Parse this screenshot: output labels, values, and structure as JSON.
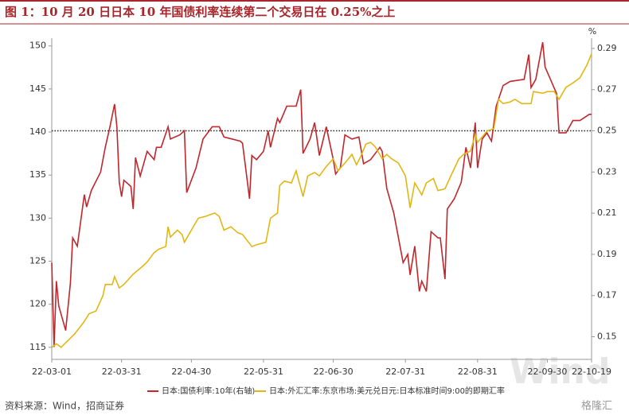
{
  "chart_data": {
    "type": "line",
    "title": "图 1：10 月 20 日日本 10 年国债利率连续第二个交易日在 0.25%之上",
    "y2_unit": "%",
    "source": "资料来源：Wind，招商证券",
    "watermark": "Wind",
    "logo": "格隆汇",
    "xlim": [
      "22-03-01",
      "22-10-19"
    ],
    "xticks": [
      "22-03-01",
      "22-03-31",
      "22-04-30",
      "22-05-31",
      "22-06-30",
      "22-07-31",
      "22-08-31",
      "22-09-30",
      "22-10-19"
    ],
    "ylim": [
      113.6,
      150.9
    ],
    "yticks": [
      115,
      120,
      125,
      130,
      135,
      140,
      145,
      150
    ],
    "y2lim": [
      0.139,
      0.295
    ],
    "y2ticks": [
      0.15,
      0.17,
      0.19,
      0.21,
      0.23,
      0.25,
      0.27,
      0.29
    ],
    "reference_line": {
      "value": 0.25,
      "axis": "y2"
    },
    "series": [
      {
        "name": "日本:国债利率:10年(右轴)",
        "color": "#c0272d",
        "axis": "y2",
        "x": [
          "22-03-01",
          "22-03-02",
          "22-03-03",
          "22-03-04",
          "22-03-07",
          "22-03-09",
          "22-03-10",
          "22-03-12",
          "22-03-15",
          "22-03-16",
          "22-03-18",
          "22-03-22",
          "22-03-24",
          "22-03-26",
          "22-03-28",
          "22-03-29",
          "22-03-30",
          "22-03-31",
          "22-04-01",
          "22-04-04",
          "22-04-05",
          "22-04-06",
          "22-04-08",
          "22-04-11",
          "22-04-14",
          "22-04-15",
          "22-04-17",
          "22-04-20",
          "22-04-21",
          "22-04-25",
          "22-04-27",
          "22-04-28",
          "22-05-02",
          "22-05-05",
          "22-05-09",
          "22-05-12",
          "22-05-14",
          "22-05-21",
          "22-05-22",
          "22-05-25",
          "22-05-26",
          "22-05-28",
          "22-05-31",
          "22-06-02",
          "22-06-03",
          "22-06-06",
          "22-06-07",
          "22-06-10",
          "22-06-14",
          "22-06-16",
          "22-06-17",
          "22-06-20",
          "22-06-22",
          "22-06-24",
          "22-06-27",
          "22-06-30",
          "22-07-01",
          "22-07-03",
          "22-07-05",
          "22-07-08",
          "22-07-11",
          "22-07-13",
          "22-07-16",
          "22-07-20",
          "22-07-21",
          "22-07-23",
          "22-07-26",
          "22-07-30",
          "22-08-01",
          "22-08-02",
          "22-08-04",
          "22-08-06",
          "22-08-07",
          "22-08-09",
          "22-08-11",
          "22-08-14",
          "22-08-15",
          "22-08-17",
          "22-08-18",
          "22-08-21",
          "22-08-24",
          "22-08-26",
          "22-08-28",
          "22-08-30",
          "22-08-31",
          "22-09-02",
          "22-09-04",
          "22-09-06",
          "22-09-08",
          "22-09-11",
          "22-09-14",
          "22-09-20",
          "22-09-22",
          "22-09-23",
          "22-09-25",
          "22-09-28",
          "22-09-29",
          "22-10-04",
          "22-10-05",
          "22-10-08",
          "22-10-11",
          "22-10-14",
          "22-10-18",
          "22-10-19"
        ],
        "values": [
          0.186,
          0.145,
          0.177,
          0.165,
          0.153,
          0.176,
          0.198,
          0.194,
          0.219,
          0.213,
          0.221,
          0.23,
          0.242,
          0.252,
          0.263,
          0.252,
          0.225,
          0.218,
          0.226,
          0.223,
          0.212,
          0.237,
          0.228,
          0.24,
          0.236,
          0.242,
          0.242,
          0.252,
          0.246,
          0.248,
          0.25,
          0.22,
          0.232,
          0.246,
          0.252,
          0.252,
          0.247,
          0.245,
          0.244,
          0.217,
          0.238,
          0.236,
          0.24,
          0.25,
          0.242,
          0.256,
          0.254,
          0.262,
          0.262,
          0.27,
          0.239,
          0.246,
          0.254,
          0.238,
          0.252,
          0.236,
          0.229,
          0.232,
          0.248,
          0.246,
          0.247,
          0.234,
          0.236,
          0.242,
          0.24,
          0.222,
          0.21,
          0.186,
          0.19,
          0.18,
          0.194,
          0.172,
          0.177,
          0.172,
          0.201,
          0.198,
          0.198,
          0.178,
          0.212,
          0.217,
          0.225,
          0.242,
          0.232,
          0.254,
          0.232,
          0.246,
          0.249,
          0.245,
          0.262,
          0.272,
          0.274,
          0.275,
          0.287,
          0.271,
          0.275,
          0.293,
          0.281,
          0.268,
          0.249,
          0.249,
          0.255,
          0.255,
          0.258,
          0.258
        ]
      },
      {
        "name": "日本:外汇汇率:东京市场:美元兑日元:日本标准时间9:00的即期汇率",
        "color": "#e2b714",
        "x": [
          "22-03-01",
          "22-03-03",
          "22-03-05",
          "22-03-08",
          "22-03-11",
          "22-03-15",
          "22-03-17",
          "22-03-20",
          "22-03-23",
          "22-03-24",
          "22-03-27",
          "22-03-28",
          "22-03-30",
          "22-04-01",
          "22-04-05",
          "22-04-09",
          "22-04-11",
          "22-04-14",
          "22-04-16",
          "22-04-19",
          "22-04-20",
          "22-04-21",
          "22-04-24",
          "22-04-26",
          "22-04-27",
          "22-04-30",
          "22-05-03",
          "22-05-06",
          "22-05-10",
          "22-05-12",
          "22-05-14",
          "22-05-17",
          "22-05-20",
          "22-05-22",
          "22-05-26",
          "22-05-28",
          "22-06-01",
          "22-06-03",
          "22-06-06",
          "22-06-07",
          "22-06-09",
          "22-06-12",
          "22-06-14",
          "22-06-17",
          "22-06-19",
          "22-06-22",
          "22-06-24",
          "22-06-27",
          "22-06-30",
          "22-07-02",
          "22-07-05",
          "22-07-08",
          "22-07-10",
          "22-07-12",
          "22-07-14",
          "22-07-16",
          "22-07-18",
          "22-07-21",
          "22-07-23",
          "22-07-25",
          "22-07-28",
          "22-07-31",
          "22-08-02",
          "22-08-04",
          "22-08-07",
          "22-08-09",
          "22-08-12",
          "22-08-14",
          "22-08-17",
          "22-08-19",
          "22-08-23",
          "22-08-25",
          "22-08-28",
          "22-08-30",
          "22-08-31",
          "22-09-04",
          "22-09-07",
          "22-09-09",
          "22-09-11",
          "22-09-14",
          "22-09-16",
          "22-09-19",
          "22-09-23",
          "22-09-24",
          "22-09-28",
          "22-09-30",
          "22-10-03",
          "22-10-05",
          "22-10-08",
          "22-10-11",
          "22-10-14",
          "22-10-17",
          "22-10-19"
        ],
        "values": [
          115.0,
          115.4,
          115.0,
          115.8,
          116.6,
          118.0,
          118.9,
          119.2,
          121.0,
          122.3,
          122.3,
          123.2,
          121.9,
          122.3,
          123.5,
          124.4,
          124.9,
          126.0,
          126.4,
          126.7,
          129.0,
          127.8,
          128.6,
          128.1,
          127.2,
          128.6,
          130.0,
          130.2,
          130.6,
          130.2,
          128.6,
          129.0,
          128.3,
          128.1,
          126.7,
          126.9,
          127.2,
          130.0,
          130.6,
          133.8,
          134.3,
          134.1,
          135.5,
          132.5,
          134.9,
          135.3,
          134.9,
          136.0,
          136.9,
          135.5,
          136.4,
          137.4,
          136.2,
          137.3,
          138.6,
          138.8,
          138.3,
          136.9,
          137.4,
          136.9,
          136.4,
          134.9,
          131.2,
          134.1,
          132.7,
          134.1,
          134.6,
          133.2,
          133.4,
          134.6,
          136.9,
          137.4,
          137.8,
          139.7,
          138.8,
          140.1,
          140.4,
          143.8,
          143.3,
          143.5,
          143.8,
          143.3,
          143.3,
          144.7,
          144.5,
          144.7,
          144.7,
          143.8,
          145.2,
          145.7,
          146.3,
          147.8,
          149.1
        ]
      }
    ]
  }
}
